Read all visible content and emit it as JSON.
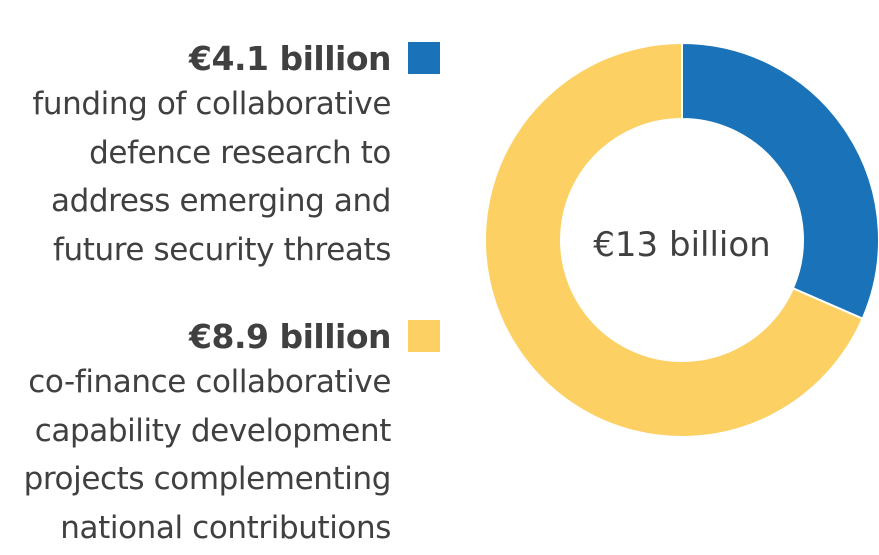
{
  "colors": {
    "blue": "#1a73b8",
    "yellow": "#fcd062",
    "text": "#404040"
  },
  "chart_data": {
    "type": "pie",
    "variant": "donut",
    "center_label": "€13 billion",
    "slices": [
      {
        "amount_label": "€4.1 billion",
        "value": 4.1,
        "description": "funding of collaborative\ndefence research to\naddress emerging and\nfuture security threats",
        "color": "#1a73b8"
      },
      {
        "amount_label": "€8.9 billion",
        "value": 8.9,
        "description": "co-finance collaborative\ncapability development\nprojects complementing\nnational contributions",
        "color": "#fcd062"
      }
    ],
    "legend_position": "left"
  }
}
